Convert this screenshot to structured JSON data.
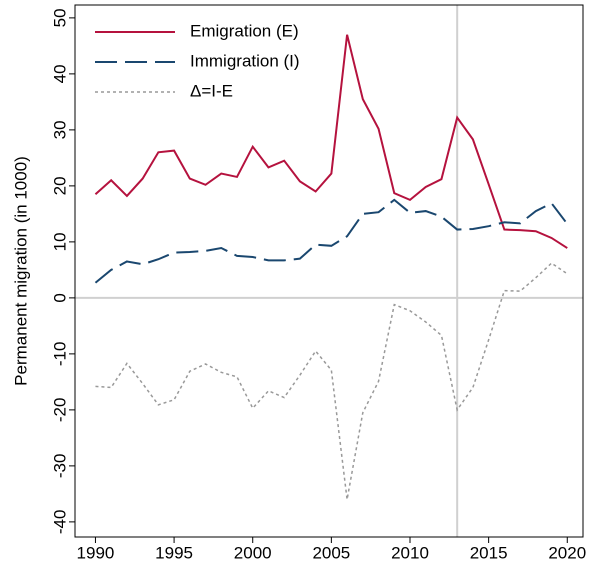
{
  "chart_data": {
    "type": "line",
    "y_label": "Permanent migration (in 1000)",
    "x": [
      1990,
      1991,
      1992,
      1993,
      1994,
      1995,
      1996,
      1997,
      1998,
      1999,
      2000,
      2001,
      2002,
      2003,
      2004,
      2005,
      2006,
      2007,
      2008,
      2009,
      2010,
      2011,
      2012,
      2013,
      2014,
      2015,
      2016,
      2017,
      2018,
      2019,
      2020
    ],
    "series": [
      {
        "name": "Emigration (E)",
        "color": "#b5123e",
        "dash": "solid",
        "values": [
          18.5,
          21,
          18.2,
          21.3,
          26,
          26.3,
          21.3,
          20.2,
          22.2,
          21.6,
          27,
          23.3,
          24.5,
          20.8,
          19,
          22.2,
          47,
          35.5,
          30.2,
          18.7,
          17.5,
          19.8,
          21.2,
          32.2,
          28.3,
          20.3,
          12.2,
          12.1,
          11.9,
          10.7,
          8.9
        ]
      },
      {
        "name": "Immigration (I)",
        "color": "#1a476f",
        "dash": "long",
        "values": [
          2.7,
          5,
          6.5,
          6,
          6.9,
          8.1,
          8.2,
          8.4,
          8.9,
          7.5,
          7.3,
          6.7,
          6.7,
          7,
          9.5,
          9.3,
          11,
          15,
          15.3,
          17.5,
          15.2,
          15.5,
          14.5,
          12.2,
          12.3,
          12.8,
          13.5,
          13.3,
          15.5,
          16.9,
          13.2
        ]
      },
      {
        "name": "Δ=I-E",
        "color": "#999999",
        "dash": "dot",
        "values": [
          -15.8,
          -16,
          -11.7,
          -15.3,
          -19.1,
          -18.2,
          -13.1,
          -11.8,
          -13.3,
          -14.1,
          -19.7,
          -16.6,
          -17.8,
          -13.8,
          -9.5,
          -12.9,
          -36,
          -20.5,
          -14.9,
          -1.2,
          -2.3,
          -4.3,
          -6.7,
          -20,
          -16,
          -7.5,
          1.3,
          1.2,
          3.6,
          6.2,
          4.3
        ]
      }
    ],
    "xlim": [
      1988.7,
      2021
    ],
    "xticks": [
      1990,
      1995,
      2000,
      2005,
      2010,
      2015,
      2020
    ],
    "ylim": [
      -42.7,
      52.3
    ],
    "yticks": [
      -40,
      -30,
      -20,
      -10,
      0,
      10,
      20,
      30,
      40,
      50
    ],
    "vlines": [
      2013
    ],
    "hlines": [
      0
    ],
    "legend": "top-left"
  }
}
